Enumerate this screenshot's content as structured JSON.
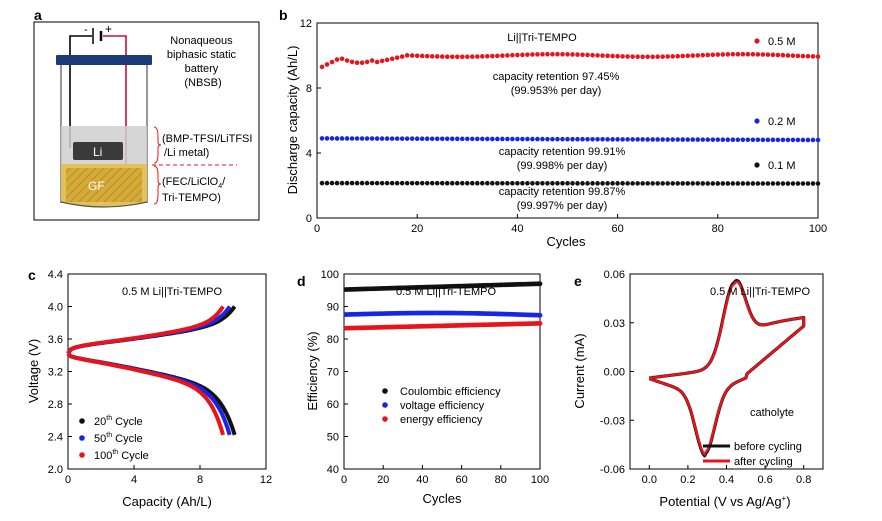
{
  "panels": {
    "a": {
      "letter": "a",
      "title_lines": [
        "Nonaqueous",
        "biphasic static",
        "battery",
        "(NBSB)"
      ],
      "top_layer_lines": [
        "(BMP-TFSI/LiTFSI",
        "/Li metal)"
      ],
      "bottom_layer_lines": [
        "(FEC/LiClO",
        "/",
        "Tri-TEMPO)"
      ],
      "bottom_sub": "4",
      "li_label": "Li",
      "gf_label": "GF",
      "minus": "-",
      "plus": "+"
    },
    "b": {
      "letter": "b"
    },
    "c": {
      "letter": "c"
    },
    "d": {
      "letter": "d"
    },
    "e": {
      "letter": "e"
    }
  },
  "chart_data": [
    {
      "id": "b",
      "type": "scatter",
      "title": "Li||Tri-TEMPO",
      "xlabel": "Cycles",
      "ylabel": "Discharge capacity (Ah/L)",
      "xlim": [
        0,
        100
      ],
      "ylim": [
        0,
        12
      ],
      "xticks": [
        0,
        20,
        40,
        60,
        80,
        100
      ],
      "yticks": [
        0,
        4,
        8,
        12
      ],
      "legend": "right",
      "series": [
        {
          "name": "0.5 M",
          "color": "#e8141c",
          "y_start": 9.3,
          "y_plateau": 10.0,
          "retention_lines": [
            "capacity retention 97.45%",
            "(99.953% per day)"
          ]
        },
        {
          "name": "0.2 M",
          "color": "#1726e6",
          "y_start": 4.9,
          "y_plateau": 4.8,
          "retention_lines": [
            "capacity retention 99.91%",
            "(99.998% per day)"
          ]
        },
        {
          "name": "0.1 M",
          "color": "#111111",
          "y_start": 2.15,
          "y_plateau": 2.12,
          "retention_lines": [
            "capacity retention 99.87%",
            "(99.997% per day)"
          ]
        }
      ]
    },
    {
      "id": "c",
      "type": "line",
      "title": "0.5 M Li||Tri-TEMPO",
      "xlabel": "Capacity (Ah/L)",
      "ylabel": "Voltage (V)",
      "xlim": [
        0,
        12
      ],
      "ylim": [
        2.0,
        4.4
      ],
      "xticks": [
        0,
        4,
        8,
        12
      ],
      "yticks": [
        2.0,
        2.4,
        2.8,
        3.2,
        3.6,
        4.0,
        4.4
      ],
      "legend": "bottom-left",
      "series": [
        {
          "name": "20",
          "sup": "th",
          "suffix": " Cycle",
          "color": "#111111",
          "end_capacity": 10.1
        },
        {
          "name": "50",
          "sup": "th",
          "suffix": " Cycle",
          "color": "#1726e6",
          "end_capacity": 9.8
        },
        {
          "name": "100",
          "sup": "th",
          "suffix": " Cycle",
          "color": "#e8141c",
          "end_capacity": 9.4
        }
      ]
    },
    {
      "id": "d",
      "type": "scatter",
      "title": "0.5 M Li||Tri-TEMPO",
      "xlabel": "Cycles",
      "ylabel": "Efficiency (%)",
      "xlim": [
        0,
        100
      ],
      "ylim": [
        40,
        100
      ],
      "xticks": [
        0,
        20,
        40,
        60,
        80,
        100
      ],
      "yticks": [
        40,
        50,
        60,
        70,
        80,
        90,
        100
      ],
      "legend": "bottom-left",
      "series": [
        {
          "name": "Coulombic efficiency",
          "color": "#111111",
          "y_start": 95.2,
          "y_end": 97.0
        },
        {
          "name": "voltage efficiency",
          "color": "#1726e6",
          "y_start": 87.5,
          "y_end": 87.3
        },
        {
          "name": "energy efficiency",
          "color": "#e8141c",
          "y_start": 83.3,
          "y_end": 84.8
        }
      ]
    },
    {
      "id": "e",
      "type": "line",
      "title": "0.5 M Li||Tri-TEMPO",
      "xlabel": "Potential (V vs Ag/Ag",
      "xlabel_sup": "+",
      "xlabel_end": ")",
      "ylabel": "Current (mA)",
      "xlim": [
        -0.1,
        0.9
      ],
      "ylim": [
        -0.06,
        0.06
      ],
      "xticks": [
        0.0,
        0.2,
        0.4,
        0.6,
        0.8
      ],
      "yticks": [
        -0.06,
        -0.03,
        0.0,
        0.03,
        0.06
      ],
      "annotation": "catholyte",
      "legend": "bottom-right",
      "series": [
        {
          "name": "before cycling",
          "color": "#111111"
        },
        {
          "name": "after cycling",
          "color": "#e8141c"
        }
      ],
      "cv": {
        "v_min": 0.0,
        "v_max": 0.8,
        "anodic_peak": [
          0.44,
          0.05
        ],
        "cathodic_peak": [
          0.29,
          -0.036
        ]
      }
    }
  ]
}
